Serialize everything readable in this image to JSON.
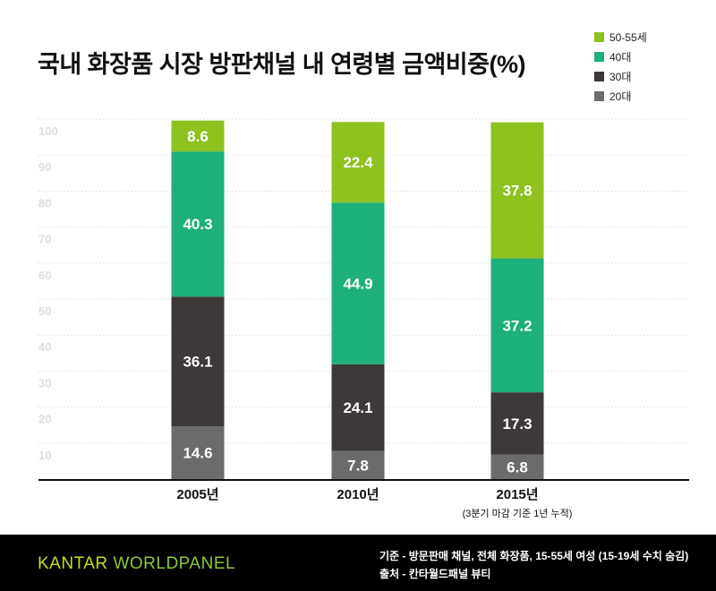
{
  "chart_data": {
    "type": "bar",
    "stacked": true,
    "title": "국내 화장품 시장 방판채널 내 연령별 금액비중(%)",
    "categories": [
      "2005년",
      "2010년",
      "2015년"
    ],
    "category_notes": [
      "",
      "",
      "(3분기 마감 기준 1년 누적)"
    ],
    "series": [
      {
        "name": "20대",
        "color": "#6b6b6b",
        "values": [
          14.6,
          7.8,
          6.8
        ]
      },
      {
        "name": "30대",
        "color": "#3d3938",
        "values": [
          36.1,
          24.1,
          17.3
        ]
      },
      {
        "name": "40대",
        "color": "#1db07a",
        "values": [
          40.3,
          44.9,
          37.2
        ]
      },
      {
        "name": "50-55세",
        "color": "#8dc21f",
        "values": [
          8.6,
          22.4,
          37.8
        ]
      }
    ],
    "legend_order": [
      "50-55세",
      "40대",
      "30대",
      "20대"
    ],
    "yticks": [
      "10",
      "20",
      "30",
      "40",
      "50",
      "60",
      "70",
      "80",
      "90",
      "100"
    ],
    "ylim": [
      0,
      100
    ],
    "grid": true,
    "legend_position": "top-right"
  },
  "footer": {
    "logo_a": "KANTAR ",
    "logo_b": "WORLDPANEL",
    "note1": "기준 - 방문판매 채널, 전체 화장품, 15-55세 여성 (15-19세 수치 숨김)",
    "note2": "출처 - 칸타월드패널 뷰티"
  }
}
